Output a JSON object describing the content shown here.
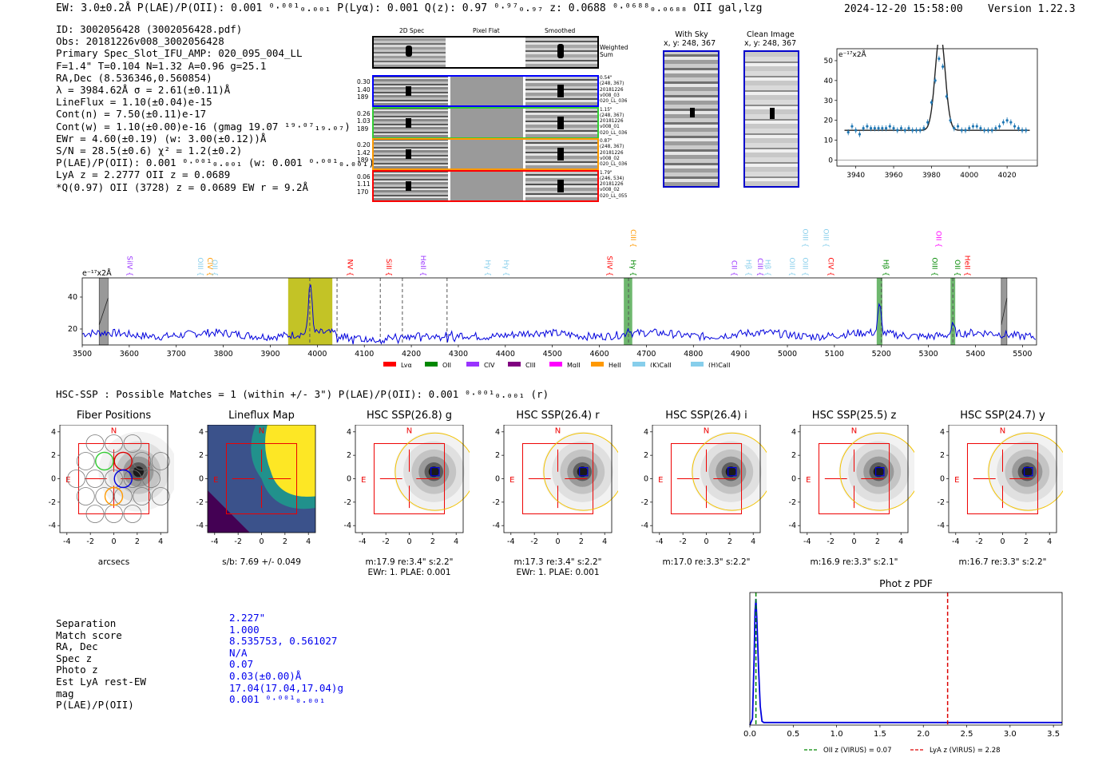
{
  "header": {
    "summary": "EW: 3.0±0.2Å  P(LAE)/P(OII): 0.001 ⁰·⁰⁰¹₀.₀₀₁  P(Lyα): 0.001  Q(z): 0.97 ⁰·⁹⁷₀.₉₇  z: 0.0688 ⁰·⁰⁶⁸⁸₀.₀₆₈₈ OII   gal,lzg",
    "timestamp": "2024-12-20 15:58:00",
    "version": "Version 1.22.3"
  },
  "info": [
    "ID: 3002056428 (3002056428.pdf)",
    "Obs: 20181226v008_3002056428",
    "Primary Spec_Slot_IFU_AMP: 020_095_004_LL",
    "F=1.4\"  T=0.104  N=1.32  A=0.96  g=25.1",
    "RA,Dec (8.536346,0.560854)",
    "λ = 3984.62Å  σ = 2.61(±0.11)Å",
    "LineFlux = 1.10(±0.04)e-15",
    "Cont(n) = 7.50(±0.11)e-17",
    "Cont(w) = 1.10(±0.00)e-16 (gmag 19.07 ¹⁹·⁰⁷₁₉.₀₇)",
    "EWr = 4.60(±0.19) (w: 3.00(±0.12))Å",
    "S/N = 28.5(±0.6)  χ² = 1.2(±0.2)",
    "P(LAE)/P(OII): 0.001 ⁰·⁰⁰¹₀.₀₀₁ (w: 0.001 ⁰·⁰⁰¹₀.₀₀₁)",
    "LyA z = 2.2777  OII z = 0.0689",
    "*Q(0.97) OII (3728) z = 0.0689  EW r = 9.2Å"
  ],
  "stamps": {
    "col_headers": [
      "2D Spec",
      "Pixel Flat",
      "Smoothed"
    ],
    "weighted_label": "Weighted Sum",
    "rows": [
      {
        "stats": "0.30\n1.40\n189",
        "meta": "0.54\"\n(248, 367)\n20181226\nv008_03\n020_LL_036",
        "color": "#0000ff"
      },
      {
        "stats": "0.26\n1.03\n189",
        "meta": "1.15\"\n(248, 367)\n20181226\nv008_01\n020_LL_036",
        "color": "#33cc33"
      },
      {
        "stats": "0.20\n1.42\n189",
        "meta": "0.87\"\n(248, 367)\n20181226\nv008_02\n020_LL_036",
        "color": "#ff9900"
      },
      {
        "stats": "0.06\n1.11\n170",
        "meta": "1.79\"\n(246, 534)\n20181226\nv008_02\n020_LL_055",
        "color": "#ff0000"
      }
    ]
  },
  "sky": {
    "with_sky_title": "With Sky",
    "with_sky_coords": "x, y: 248, 367",
    "clean_title": "Clean Image",
    "clean_coords": "x, y: 248, 367"
  },
  "fit_plot": {
    "unit_label": "e⁻¹⁷x2Å",
    "x_ticks": [
      3940,
      3960,
      3980,
      4000,
      4020
    ],
    "y_ticks": [
      0,
      10,
      20,
      30,
      40,
      50
    ]
  },
  "spectrum": {
    "unit_label": "e⁻¹⁷x2Å",
    "x_ticks": [
      3500,
      3600,
      3700,
      3800,
      3900,
      4000,
      4100,
      4200,
      4300,
      4400,
      4500,
      4600,
      4700,
      4800,
      4900,
      5000,
      5100,
      5200,
      5300,
      5400,
      5500
    ],
    "y_ticks": [
      20,
      40
    ],
    "lines": [
      {
        "name": "SiIV {",
        "x": 3591,
        "color": "#9933ff",
        "row": 1
      },
      {
        "name": "OIII {",
        "x": 3741,
        "color": "#87ceeb",
        "row": 1
      },
      {
        "name": "CIV {",
        "x": 3762,
        "color": "#ff9900",
        "row": 1
      },
      {
        "name": "OII {",
        "x": 3772,
        "color": "#87ceeb",
        "row": 1
      },
      {
        "name": "NV {",
        "x": 4060,
        "color": "#ff0000",
        "row": 1
      },
      {
        "name": "SiII {",
        "x": 4142,
        "color": "#ff0000",
        "row": 1
      },
      {
        "name": "HeII {",
        "x": 4215,
        "color": "#9933ff",
        "row": 1
      },
      {
        "name": "Hγ {",
        "x": 4353,
        "color": "#87ceeb",
        "row": 1
      },
      {
        "name": "Hγ {",
        "x": 4392,
        "color": "#87ceeb",
        "row": 1
      },
      {
        "name": "SiIV {",
        "x": 4612,
        "color": "#ff0000",
        "row": 1
      },
      {
        "name": "Hγ {",
        "x": 4662,
        "color": "#008800",
        "row": 1
      },
      {
        "name": "CIII {",
        "x": 4662,
        "color": "#ff9900",
        "row": 2
      },
      {
        "name": "CII {",
        "x": 4877,
        "color": "#9933ff",
        "row": 1
      },
      {
        "name": "Hβ {",
        "x": 4907,
        "color": "#87ceeb",
        "row": 1
      },
      {
        "name": "CIII {",
        "x": 4932,
        "color": "#9933ff",
        "row": 1
      },
      {
        "name": "Hβ {",
        "x": 4948,
        "color": "#87ceeb",
        "row": 1
      },
      {
        "name": "OIII {",
        "x": 5000,
        "color": "#87ceeb",
        "row": 1
      },
      {
        "name": "OIII {",
        "x": 5028,
        "color": "#87ceeb",
        "row": 1
      },
      {
        "name": "OIII {",
        "x": 5028,
        "color": "#87ceeb",
        "row": 2
      },
      {
        "name": "OIII {",
        "x": 5072,
        "color": "#87ceeb",
        "row": 2
      },
      {
        "name": "CIV {",
        "x": 5082,
        "color": "#ff0000",
        "row": 1
      },
      {
        "name": "Hβ {",
        "x": 5200,
        "color": "#008800",
        "row": 1
      },
      {
        "name": "OIII {",
        "x": 5303,
        "color": "#008800",
        "row": 1
      },
      {
        "name": "OII {",
        "x": 5352,
        "color": "#008800",
        "row": 1
      },
      {
        "name": "OII {",
        "x": 5312,
        "color": "#ff00ff",
        "row": 2
      },
      {
        "name": "HeII {",
        "x": 5373,
        "color": "#ff0000",
        "row": 1
      }
    ],
    "legend": [
      {
        "name": "Lyα",
        "color": "#ff0000"
      },
      {
        "name": "OII",
        "color": "#008800"
      },
      {
        "name": "CIV",
        "color": "#9933ff"
      },
      {
        "name": "CIII",
        "color": "#800080"
      },
      {
        "name": "MgII",
        "color": "#ff00ff"
      },
      {
        "name": "HeII",
        "color": "#ff9900"
      },
      {
        "name": "(K)CaII",
        "color": "#87ceeb"
      },
      {
        "name": "(H)CaII",
        "color": "#87ceeb"
      }
    ]
  },
  "hsc": {
    "line": "HSC-SSP : Possible Matches = 1 (within +/- 3\")  P(LAE)/P(OII): 0.001 ⁰·⁰⁰¹₀.₀₀₁ (r)",
    "panels": [
      {
        "title": "Fiber Positions",
        "cap1": "arcsecs",
        "cap2": ""
      },
      {
        "title": "Lineflux Map",
        "cap1": "s/b: 7.69 +/- 0.049",
        "cap2": ""
      },
      {
        "title": "HSC SSP(26.8) g",
        "cap1": "m:17.9  re:3.4\"  s:2.2\"",
        "cap2": "EWr: 1. PLAE: 0.001"
      },
      {
        "title": "HSC SSP(26.4) r",
        "cap1": "m:17.3  re:3.4\"  s:2.2\"",
        "cap2": "EWr: 1. PLAE: 0.001"
      },
      {
        "title": "HSC SSP(26.4) i",
        "cap1": "m:17.0  re:3.3\"  s:2.2\"",
        "cap2": ""
      },
      {
        "title": "HSC SSP(25.5) z",
        "cap1": "m:16.9  re:3.3\"  s:2.1\"",
        "cap2": ""
      },
      {
        "title": "HSC SSP(24.7) y",
        "cap1": "m:16.7  re:3.3\"  s:2.2\"",
        "cap2": ""
      }
    ],
    "compass_n": "N",
    "compass_e": "E",
    "axis_ticks": [
      -4,
      -2,
      0,
      2,
      4
    ]
  },
  "match": {
    "labels": [
      "Separation",
      "Match score",
      "RA, Dec",
      "Spec z",
      "Photo z",
      "Est LyA rest-EW",
      "mag",
      "P(LAE)/P(OII)"
    ],
    "values": [
      "2.227\"",
      "1.000",
      "8.535753, 0.561027",
      "N/A",
      "0.07",
      "0.03(±0.00)Å",
      "17.04(17.04,17.04)g",
      "0.001 ⁰·⁰⁰¹₀.₀₀₁"
    ]
  },
  "photz": {
    "title": "Phot z PDF",
    "x_ticks": [
      "0.0",
      "0.5",
      "1.0",
      "1.5",
      "2.0",
      "2.5",
      "3.0",
      "3.5"
    ],
    "legend_oii": "OII z (VIRUS) = 0.07",
    "legend_lya": "LyA z (VIRUS) = 2.28"
  },
  "chart_data": [
    {
      "type": "scatter",
      "title": "Emission line fit",
      "ylabel": "e-17 x2Å",
      "xlim": [
        3930,
        4036
      ],
      "ylim": [
        -3,
        56
      ],
      "points": [
        [
          3936,
          14
        ],
        [
          3938,
          17
        ],
        [
          3940,
          15
        ],
        [
          3942,
          13
        ],
        [
          3944,
          16
        ],
        [
          3946,
          17
        ],
        [
          3948,
          16
        ],
        [
          3950,
          16
        ],
        [
          3952,
          16
        ],
        [
          3954,
          16
        ],
        [
          3956,
          16
        ],
        [
          3958,
          17
        ],
        [
          3960,
          16
        ],
        [
          3962,
          15
        ],
        [
          3964,
          16
        ],
        [
          3966,
          15
        ],
        [
          3968,
          16
        ],
        [
          3970,
          15
        ],
        [
          3972,
          15
        ],
        [
          3974,
          15
        ],
        [
          3976,
          16
        ],
        [
          3978,
          19
        ],
        [
          3980,
          29
        ],
        [
          3982,
          40
        ],
        [
          3984,
          51
        ],
        [
          3986,
          47
        ],
        [
          3988,
          32
        ],
        [
          3990,
          20
        ],
        [
          3992,
          16
        ],
        [
          3994,
          17
        ],
        [
          3996,
          15
        ],
        [
          3998,
          15
        ],
        [
          4000,
          16
        ],
        [
          4002,
          17
        ],
        [
          4004,
          17
        ],
        [
          4006,
          16
        ],
        [
          4008,
          15
        ],
        [
          4010,
          15
        ],
        [
          4012,
          15
        ],
        [
          4014,
          16
        ],
        [
          4016,
          17
        ],
        [
          4018,
          19
        ],
        [
          4020,
          20
        ],
        [
          4022,
          19
        ],
        [
          4024,
          17
        ],
        [
          4026,
          16
        ],
        [
          4028,
          15
        ],
        [
          4030,
          15
        ]
      ],
      "model": {
        "center": 3984.62,
        "sigma": 2.61,
        "continuum": 15,
        "peak": 49
      }
    },
    {
      "type": "line",
      "title": "Full spectrum",
      "xlim": [
        3500,
        5530
      ],
      "ylim": [
        10,
        52
      ],
      "continuum": 16.5,
      "features": [
        {
          "x": 3985,
          "peak": 50
        },
        {
          "x": 4662,
          "peak": 20
        },
        {
          "x": 5196,
          "peak": 34
        },
        {
          "x": 5352,
          "peak": 22
        }
      ],
      "highlight_bands": [
        {
          "from": 3938,
          "to": 4032,
          "color": "#b8b800"
        },
        {
          "from": 4652,
          "to": 4670,
          "color": "#55aa55"
        },
        {
          "from": 5190,
          "to": 5202,
          "color": "#55aa55"
        },
        {
          "from": 5347,
          "to": 5357,
          "color": "#55aa55"
        }
      ],
      "hatched_bands": [
        {
          "from": 3536,
          "to": 3555
        },
        {
          "from": 5455,
          "to": 5467
        }
      ],
      "dashed_lines": [
        3984,
        4042,
        4134,
        4181,
        4276,
        4662,
        5200,
        5352
      ]
    },
    {
      "type": "line",
      "title": "Phot z PDF",
      "xlim": [
        0,
        3.6
      ],
      "ylim": [
        0,
        1.05
      ],
      "x": [
        0.0,
        0.03,
        0.05,
        0.06,
        0.07,
        0.08,
        0.1,
        0.12,
        0.14,
        0.16,
        0.5,
        1.0,
        2.0,
        3.0,
        3.6
      ],
      "y": [
        0.0,
        0.05,
        0.55,
        0.9,
        1.0,
        0.85,
        0.45,
        0.15,
        0.03,
        0.02,
        0.02,
        0.02,
        0.02,
        0.02,
        0.02
      ],
      "markers": [
        {
          "x": 0.07,
          "color": "#008800"
        },
        {
          "x": 2.28,
          "color": "#dd0000"
        }
      ]
    }
  ]
}
